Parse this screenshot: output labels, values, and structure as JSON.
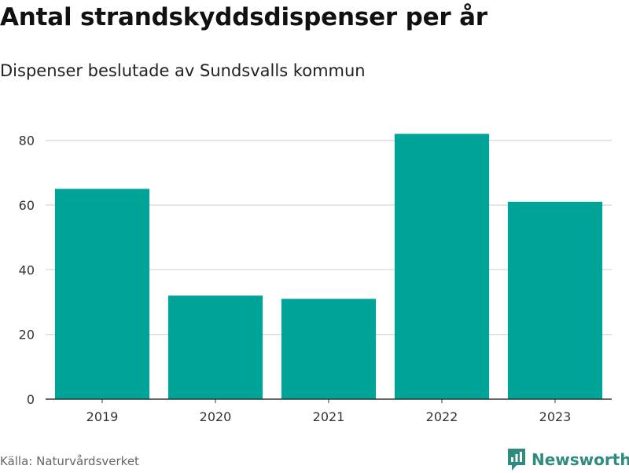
{
  "header": {
    "title": "Antal strandskyddsdispenser per år",
    "subtitle": "Dispenser beslutade av Sundsvalls kommun"
  },
  "footer": {
    "source": "Källa: Naturvårdsverket",
    "brand": "Newsworthy",
    "brand_icon": "newsworthy-logo-icon"
  },
  "colors": {
    "bar": "#00a398",
    "grid": "#dddddd",
    "axis": "#333333",
    "brand": "#2e8b7e"
  },
  "chart_data": {
    "type": "bar",
    "title": "Antal strandskyddsdispenser per år",
    "subtitle": "Dispenser beslutade av Sundsvalls kommun",
    "xlabel": "",
    "ylabel": "",
    "categories": [
      "2019",
      "2020",
      "2021",
      "2022",
      "2023"
    ],
    "values": [
      65,
      32,
      31,
      82,
      61
    ],
    "ylim": [
      0,
      85
    ],
    "yticks": [
      0,
      20,
      40,
      60,
      80
    ],
    "grid": true,
    "legend": "none"
  }
}
